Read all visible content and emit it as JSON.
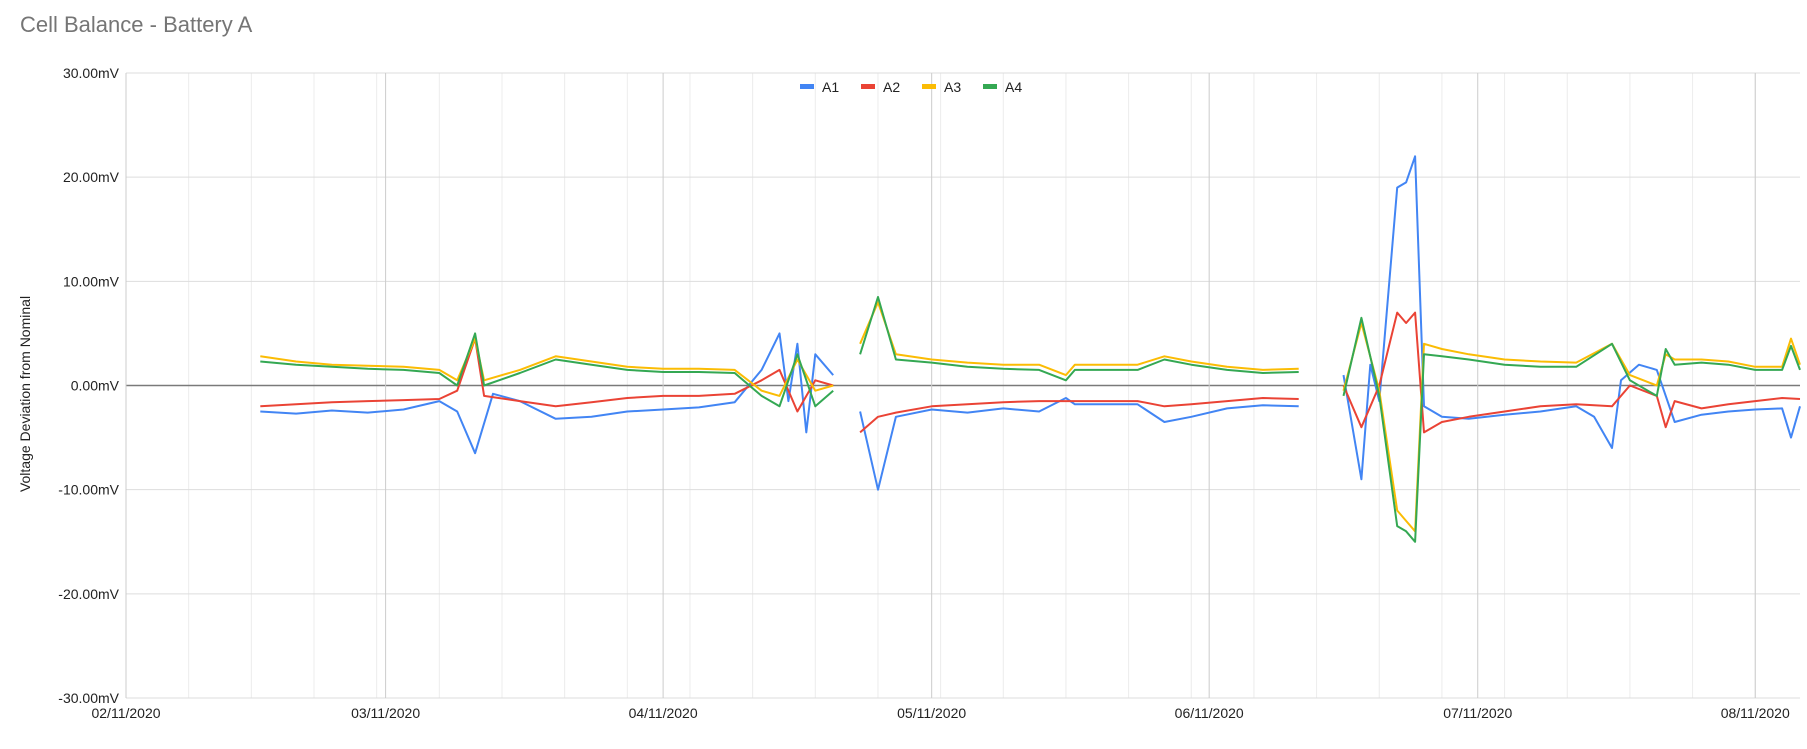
{
  "chart_data": {
    "type": "line",
    "title": "Cell Balance - Battery A",
    "xlabel": "",
    "ylabel": "Voltage Deviation from Nominal",
    "ylim": [
      -30,
      30
    ],
    "xlim": [
      "2020-02-11",
      "2020-08-16"
    ],
    "x_ticks": [
      "02/11/2020",
      "03/11/2020",
      "04/11/2020",
      "05/11/2020",
      "06/11/2020",
      "07/11/2020",
      "08/11/2020"
    ],
    "y_ticks": [
      "30.00mV",
      "20.00mV",
      "10.00mV",
      "0.00mV",
      "-10.00mV",
      "-20.00mV",
      "-30.00mV"
    ],
    "grid": true,
    "legend_position": "top",
    "series": [
      {
        "name": "A1",
        "color": "#4285F4",
        "points": [
          [
            "2020-02-26",
            -2.5
          ],
          [
            "2020-03-01",
            -2.7
          ],
          [
            "2020-03-05",
            -2.4
          ],
          [
            "2020-03-09",
            -2.6
          ],
          [
            "2020-03-13",
            -2.3
          ],
          [
            "2020-03-17",
            -1.5
          ],
          [
            "2020-03-19",
            -2.5
          ],
          [
            "2020-03-21",
            -6.5
          ],
          [
            "2020-03-23",
            -0.8
          ],
          [
            "2020-03-26",
            -1.5
          ],
          [
            "2020-03-30",
            -3.2
          ],
          [
            "2020-04-03",
            -3.0
          ],
          [
            "2020-04-07",
            -2.5
          ],
          [
            "2020-04-11",
            -2.3
          ],
          [
            "2020-04-15",
            -2.1
          ],
          [
            "2020-04-19",
            -1.6
          ],
          [
            "2020-04-22",
            1.5
          ],
          [
            "2020-04-24",
            5.0
          ],
          [
            "2020-04-25",
            -1.5
          ],
          [
            "2020-04-26",
            4.0
          ],
          [
            "2020-04-27",
            -4.5
          ],
          [
            "2020-04-28",
            3.0
          ],
          [
            "2020-04-30",
            1.0
          ],
          [
            null,
            null
          ],
          [
            "2020-05-03",
            -2.5
          ],
          [
            "2020-05-05",
            -10.0
          ],
          [
            "2020-05-07",
            -3.0
          ],
          [
            "2020-05-11",
            -2.3
          ],
          [
            "2020-05-15",
            -2.6
          ],
          [
            "2020-05-19",
            -2.2
          ],
          [
            "2020-05-23",
            -2.5
          ],
          [
            "2020-05-26",
            -1.2
          ],
          [
            "2020-05-27",
            -1.8
          ],
          [
            "2020-06-03",
            -1.8
          ],
          [
            "2020-06-06",
            -3.5
          ],
          [
            "2020-06-09",
            -3.0
          ],
          [
            "2020-06-13",
            -2.2
          ],
          [
            "2020-06-17",
            -1.9
          ],
          [
            "2020-06-21",
            -2.0
          ],
          [
            null,
            null
          ],
          [
            "2020-06-26",
            1.0
          ],
          [
            "2020-06-28",
            -9.0
          ],
          [
            "2020-06-29",
            2.0
          ],
          [
            "2020-06-30",
            -1.5
          ],
          [
            "2020-07-02",
            19.0
          ],
          [
            "2020-07-03",
            19.5
          ],
          [
            "2020-07-04",
            22.0
          ],
          [
            "2020-07-05",
            -2.0
          ],
          [
            "2020-07-07",
            -3.0
          ],
          [
            "2020-07-10",
            -3.2
          ],
          [
            "2020-07-14",
            -2.8
          ],
          [
            "2020-07-18",
            -2.5
          ],
          [
            "2020-07-22",
            -2.0
          ],
          [
            "2020-07-24",
            -3.0
          ],
          [
            "2020-07-26",
            -6.0
          ],
          [
            "2020-07-27",
            0.5
          ],
          [
            "2020-07-29",
            2.0
          ],
          [
            "2020-07-31",
            1.5
          ],
          [
            "2020-08-02",
            -3.5
          ],
          [
            "2020-08-05",
            -2.8
          ],
          [
            "2020-08-08",
            -2.5
          ],
          [
            "2020-08-11",
            -2.3
          ],
          [
            "2020-08-14",
            -2.2
          ],
          [
            "2020-08-15",
            -5.0
          ],
          [
            "2020-08-16",
            -2.0
          ]
        ]
      },
      {
        "name": "A2",
        "color": "#EA4335",
        "points": [
          [
            "2020-02-26",
            -2.0
          ],
          [
            "2020-03-01",
            -1.8
          ],
          [
            "2020-03-05",
            -1.6
          ],
          [
            "2020-03-09",
            -1.5
          ],
          [
            "2020-03-13",
            -1.4
          ],
          [
            "2020-03-17",
            -1.3
          ],
          [
            "2020-03-19",
            -0.5
          ],
          [
            "2020-03-21",
            4.5
          ],
          [
            "2020-03-22",
            -1.0
          ],
          [
            "2020-03-26",
            -1.5
          ],
          [
            "2020-03-30",
            -2.0
          ],
          [
            "2020-04-03",
            -1.6
          ],
          [
            "2020-04-07",
            -1.2
          ],
          [
            "2020-04-11",
            -1.0
          ],
          [
            "2020-04-15",
            -1.0
          ],
          [
            "2020-04-19",
            -0.8
          ],
          [
            "2020-04-22",
            0.5
          ],
          [
            "2020-04-24",
            1.5
          ],
          [
            "2020-04-26",
            -2.5
          ],
          [
            "2020-04-28",
            0.5
          ],
          [
            "2020-04-30",
            0.0
          ],
          [
            null,
            null
          ],
          [
            "2020-05-03",
            -4.5
          ],
          [
            "2020-05-05",
            -3.0
          ],
          [
            "2020-05-07",
            -2.6
          ],
          [
            "2020-05-11",
            -2.0
          ],
          [
            "2020-05-15",
            -1.8
          ],
          [
            "2020-05-19",
            -1.6
          ],
          [
            "2020-05-23",
            -1.5
          ],
          [
            "2020-05-26",
            -1.5
          ],
          [
            "2020-06-03",
            -1.5
          ],
          [
            "2020-06-06",
            -2.0
          ],
          [
            "2020-06-09",
            -1.8
          ],
          [
            "2020-06-13",
            -1.5
          ],
          [
            "2020-06-17",
            -1.2
          ],
          [
            "2020-06-21",
            -1.3
          ],
          [
            null,
            null
          ],
          [
            "2020-06-26",
            0.0
          ],
          [
            "2020-06-28",
            -4.0
          ],
          [
            "2020-06-30",
            0.0
          ],
          [
            "2020-07-02",
            7.0
          ],
          [
            "2020-07-03",
            6.0
          ],
          [
            "2020-07-04",
            7.0
          ],
          [
            "2020-07-05",
            -4.5
          ],
          [
            "2020-07-07",
            -3.5
          ],
          [
            "2020-07-10",
            -3.0
          ],
          [
            "2020-07-14",
            -2.5
          ],
          [
            "2020-07-18",
            -2.0
          ],
          [
            "2020-07-22",
            -1.8
          ],
          [
            "2020-07-26",
            -2.0
          ],
          [
            "2020-07-28",
            0.0
          ],
          [
            "2020-07-31",
            -1.0
          ],
          [
            "2020-08-01",
            -4.0
          ],
          [
            "2020-08-02",
            -1.5
          ],
          [
            "2020-08-05",
            -2.2
          ],
          [
            "2020-08-08",
            -1.8
          ],
          [
            "2020-08-11",
            -1.5
          ],
          [
            "2020-08-14",
            -1.2
          ],
          [
            "2020-08-16",
            -1.3
          ]
        ]
      },
      {
        "name": "A3",
        "color": "#FBBC04",
        "points": [
          [
            "2020-02-26",
            2.8
          ],
          [
            "2020-03-01",
            2.3
          ],
          [
            "2020-03-05",
            2.0
          ],
          [
            "2020-03-09",
            1.9
          ],
          [
            "2020-03-13",
            1.8
          ],
          [
            "2020-03-17",
            1.5
          ],
          [
            "2020-03-19",
            0.5
          ],
          [
            "2020-03-21",
            4.5
          ],
          [
            "2020-03-22",
            0.5
          ],
          [
            "2020-03-26",
            1.5
          ],
          [
            "2020-03-30",
            2.8
          ],
          [
            "2020-04-03",
            2.3
          ],
          [
            "2020-04-07",
            1.8
          ],
          [
            "2020-04-11",
            1.6
          ],
          [
            "2020-04-15",
            1.6
          ],
          [
            "2020-04-19",
            1.5
          ],
          [
            "2020-04-22",
            -0.5
          ],
          [
            "2020-04-24",
            -1.0
          ],
          [
            "2020-04-26",
            2.5
          ],
          [
            "2020-04-28",
            -0.5
          ],
          [
            "2020-04-30",
            0.0
          ],
          [
            null,
            null
          ],
          [
            "2020-05-03",
            4.0
          ],
          [
            "2020-05-05",
            8.0
          ],
          [
            "2020-05-07",
            3.0
          ],
          [
            "2020-05-11",
            2.5
          ],
          [
            "2020-05-15",
            2.2
          ],
          [
            "2020-05-19",
            2.0
          ],
          [
            "2020-05-23",
            2.0
          ],
          [
            "2020-05-26",
            1.0
          ],
          [
            "2020-05-27",
            2.0
          ],
          [
            "2020-06-03",
            2.0
          ],
          [
            "2020-06-06",
            2.8
          ],
          [
            "2020-06-09",
            2.3
          ],
          [
            "2020-06-13",
            1.8
          ],
          [
            "2020-06-17",
            1.5
          ],
          [
            "2020-06-21",
            1.6
          ],
          [
            null,
            null
          ],
          [
            "2020-06-26",
            -0.5
          ],
          [
            "2020-06-28",
            6.0
          ],
          [
            "2020-06-30",
            -0.5
          ],
          [
            "2020-07-02",
            -12.0
          ],
          [
            "2020-07-03",
            -13.0
          ],
          [
            "2020-07-04",
            -14.0
          ],
          [
            "2020-07-05",
            4.0
          ],
          [
            "2020-07-07",
            3.5
          ],
          [
            "2020-07-10",
            3.0
          ],
          [
            "2020-07-14",
            2.5
          ],
          [
            "2020-07-18",
            2.3
          ],
          [
            "2020-07-22",
            2.2
          ],
          [
            "2020-07-26",
            4.0
          ],
          [
            "2020-07-28",
            1.0
          ],
          [
            "2020-07-31",
            0.0
          ],
          [
            "2020-08-01",
            3.0
          ],
          [
            "2020-08-02",
            2.5
          ],
          [
            "2020-08-05",
            2.5
          ],
          [
            "2020-08-08",
            2.3
          ],
          [
            "2020-08-11",
            1.8
          ],
          [
            "2020-08-14",
            1.8
          ],
          [
            "2020-08-15",
            4.5
          ],
          [
            "2020-08-16",
            2.0
          ]
        ]
      },
      {
        "name": "A4",
        "color": "#34A853",
        "points": [
          [
            "2020-02-26",
            2.3
          ],
          [
            "2020-03-01",
            2.0
          ],
          [
            "2020-03-05",
            1.8
          ],
          [
            "2020-03-09",
            1.6
          ],
          [
            "2020-03-13",
            1.5
          ],
          [
            "2020-03-17",
            1.2
          ],
          [
            "2020-03-19",
            0.0
          ],
          [
            "2020-03-21",
            5.0
          ],
          [
            "2020-03-22",
            0.0
          ],
          [
            "2020-03-26",
            1.2
          ],
          [
            "2020-03-30",
            2.5
          ],
          [
            "2020-04-03",
            2.0
          ],
          [
            "2020-04-07",
            1.5
          ],
          [
            "2020-04-11",
            1.3
          ],
          [
            "2020-04-15",
            1.3
          ],
          [
            "2020-04-19",
            1.2
          ],
          [
            "2020-04-22",
            -1.0
          ],
          [
            "2020-04-24",
            -2.0
          ],
          [
            "2020-04-26",
            3.0
          ],
          [
            "2020-04-28",
            -2.0
          ],
          [
            "2020-04-30",
            -0.5
          ],
          [
            null,
            null
          ],
          [
            "2020-05-03",
            3.0
          ],
          [
            "2020-05-05",
            8.5
          ],
          [
            "2020-05-07",
            2.5
          ],
          [
            "2020-05-11",
            2.2
          ],
          [
            "2020-05-15",
            1.8
          ],
          [
            "2020-05-19",
            1.6
          ],
          [
            "2020-05-23",
            1.5
          ],
          [
            "2020-05-26",
            0.5
          ],
          [
            "2020-05-27",
            1.5
          ],
          [
            "2020-06-03",
            1.5
          ],
          [
            "2020-06-06",
            2.5
          ],
          [
            "2020-06-09",
            2.0
          ],
          [
            "2020-06-13",
            1.5
          ],
          [
            "2020-06-17",
            1.2
          ],
          [
            "2020-06-21",
            1.3
          ],
          [
            null,
            null
          ],
          [
            "2020-06-26",
            -1.0
          ],
          [
            "2020-06-28",
            6.5
          ],
          [
            "2020-06-30",
            -1.0
          ],
          [
            "2020-07-02",
            -13.5
          ],
          [
            "2020-07-03",
            -14.0
          ],
          [
            "2020-07-04",
            -15.0
          ],
          [
            "2020-07-05",
            3.0
          ],
          [
            "2020-07-07",
            2.8
          ],
          [
            "2020-07-10",
            2.5
          ],
          [
            "2020-07-14",
            2.0
          ],
          [
            "2020-07-18",
            1.8
          ],
          [
            "2020-07-22",
            1.8
          ],
          [
            "2020-07-26",
            4.0
          ],
          [
            "2020-07-28",
            0.5
          ],
          [
            "2020-07-31",
            -1.0
          ],
          [
            "2020-08-01",
            3.5
          ],
          [
            "2020-08-02",
            2.0
          ],
          [
            "2020-08-05",
            2.2
          ],
          [
            "2020-08-08",
            2.0
          ],
          [
            "2020-08-11",
            1.5
          ],
          [
            "2020-08-14",
            1.5
          ],
          [
            "2020-08-15",
            3.8
          ],
          [
            "2020-08-16",
            1.5
          ]
        ]
      }
    ]
  }
}
